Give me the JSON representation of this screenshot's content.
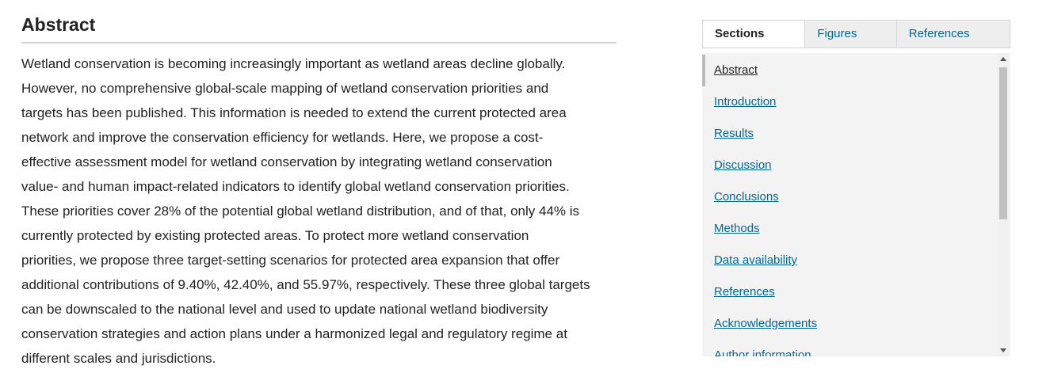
{
  "abstract": {
    "title": "Abstract",
    "lines": [
      "Wetland conservation is becoming increasingly important as wetland areas decline globally.",
      "However, no comprehensive global-scale mapping of wetland conservation priorities and",
      "targets has been published. This information is needed to extend the current protected area",
      "network and improve the conservation efficiency for wetlands. Here, we propose a cost-",
      "effective assessment model for wetland conservation by integrating wetland conservation",
      "value- and human impact-related indicators to identify global wetland conservation priorities.",
      "These priorities cover 28% of the potential global wetland distribution, and of that, only 44% is",
      "currently protected by existing protected areas. To protect more wetland conservation",
      "priorities, we propose three target-setting scenarios for protected area expansion that offer",
      "additional contributions of 9.40%, 42.40%, and 55.97%, respectively. These three global targets",
      "can be downscaled to the national level and used to update national wetland biodiversity",
      "conservation strategies and action plans under a harmonized legal and regulatory regime at",
      "different scales and jurisdictions."
    ]
  },
  "sidebar": {
    "tabs": [
      "Sections",
      "Figures",
      "References"
    ],
    "sections": [
      "Abstract",
      "Introduction",
      "Results",
      "Discussion",
      "Conclusions",
      "Methods",
      "Data availability",
      "References",
      "Acknowledgements",
      "Author information"
    ]
  }
}
